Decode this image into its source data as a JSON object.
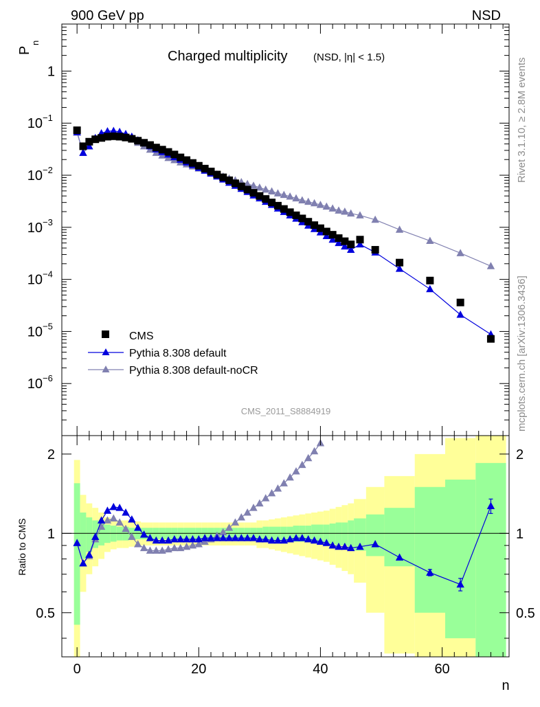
{
  "header": {
    "energy_label": "900 GeV pp",
    "process_label": "NSD"
  },
  "side_labels": {
    "rivet": "Rivet 3.1.10, ≥ 2.8M events",
    "mcplots": "mcplots.cern.ch [arXiv:1306.3436]"
  },
  "analysis_id": "CMS_2011_S8884919",
  "colors": {
    "data": "#000000",
    "default": "#0000dd",
    "nocr": "#8080b0",
    "band_inner": "#99ff99",
    "band_outer": "#ffff99"
  },
  "chart_data": [
    {
      "type": "scatter",
      "panel": "main",
      "title": "Charged multiplicity",
      "subtitle": "(NSD, |η| < 1.5)",
      "xlabel": "n",
      "ylabel": "P",
      "ylabel_sub": "n",
      "xlim": [
        -2.5,
        71
      ],
      "ylim": [
        1e-07,
        8
      ],
      "yscale": "log",
      "y_ticks": [
        {
          "value": 1,
          "label": "1"
        },
        {
          "value": 0.1,
          "base": "10",
          "exp": "−1"
        },
        {
          "value": 0.01,
          "base": "10",
          "exp": "−2"
        },
        {
          "value": 0.001,
          "base": "10",
          "exp": "−3"
        },
        {
          "value": 0.0001,
          "base": "10",
          "exp": "−4"
        },
        {
          "value": 1e-05,
          "base": "10",
          "exp": "−5"
        },
        {
          "value": 1e-06,
          "base": "10",
          "exp": "−6"
        }
      ],
      "legend": {
        "position": "bottom-left",
        "entries": [
          {
            "label": "CMS",
            "series": "cms"
          },
          {
            "label": "Pythia 8.308 default",
            "series": "default"
          },
          {
            "label": "Pythia 8.308 default-noCR",
            "series": "nocr"
          }
        ]
      },
      "series": [
        {
          "name": "CMS",
          "key": "cms",
          "marker": "square",
          "x": [
            0,
            1,
            2,
            3,
            4,
            5,
            6,
            7,
            8,
            9,
            10,
            11,
            12,
            13,
            14,
            15,
            16,
            17,
            18,
            19,
            20,
            21,
            22,
            23,
            24,
            25,
            26,
            27,
            28,
            29,
            30,
            31,
            32,
            33,
            34,
            35,
            36,
            37,
            38,
            39,
            40,
            41,
            42,
            43,
            44,
            45,
            46.5,
            49,
            53,
            58,
            63,
            68
          ],
          "y": [
            0.073,
            0.036,
            0.044,
            0.049,
            0.052,
            0.055,
            0.056,
            0.055,
            0.053,
            0.05,
            0.046,
            0.042,
            0.038,
            0.034,
            0.031,
            0.028,
            0.025,
            0.022,
            0.0195,
            0.0172,
            0.0152,
            0.0134,
            0.0118,
            0.0103,
            0.0091,
            0.008,
            0.007,
            0.0061,
            0.0053,
            0.0046,
            0.004,
            0.0035,
            0.003,
            0.0026,
            0.00225,
            0.00195,
            0.0017,
            0.00148,
            0.00128,
            0.0011,
            0.00096,
            0.00083,
            0.00072,
            0.00062,
            0.00054,
            0.00047,
            0.00058,
            0.00037,
            0.00021,
            9.5e-05,
            3.6e-05,
            7.2e-06
          ]
        },
        {
          "name": "Pythia 8.308 default",
          "key": "default",
          "marker": "triangle",
          "x": [
            0,
            1,
            2,
            3,
            4,
            5,
            6,
            7,
            8,
            9,
            10,
            11,
            12,
            13,
            14,
            15,
            16,
            17,
            18,
            19,
            20,
            21,
            22,
            23,
            24,
            25,
            26,
            27,
            28,
            29,
            30,
            31,
            32,
            33,
            34,
            35,
            36,
            37,
            38,
            39,
            40,
            41,
            42,
            43,
            44,
            45,
            46.5,
            49,
            53,
            58,
            63,
            68
          ],
          "y": [
            0.067,
            0.027,
            0.036,
            0.052,
            0.064,
            0.07,
            0.071,
            0.068,
            0.062,
            0.055,
            0.047,
            0.041,
            0.036,
            0.0315,
            0.028,
            0.025,
            0.0223,
            0.0199,
            0.0177,
            0.0157,
            0.0139,
            0.0123,
            0.0108,
            0.0095,
            0.0083,
            0.0072,
            0.0063,
            0.0055,
            0.0048,
            0.0041,
            0.0036,
            0.0031,
            0.0027,
            0.0023,
            0.00198,
            0.0017,
            0.00147,
            0.00126,
            0.00108,
            0.00093,
            0.0008,
            0.00068,
            0.00058,
            0.0005,
            0.00043,
            0.00037,
            0.00047,
            0.00033,
            0.00016,
            6.5e-05,
            2.1e-05,
            8.8e-06
          ]
        },
        {
          "name": "Pythia 8.308 default-noCR",
          "key": "nocr",
          "marker": "triangle",
          "x": [
            0,
            1,
            2,
            3,
            4,
            5,
            6,
            7,
            8,
            9,
            10,
            11,
            12,
            13,
            14,
            15,
            16,
            17,
            18,
            19,
            20,
            21,
            22,
            23,
            24,
            25,
            26,
            27,
            28,
            29,
            30,
            31,
            32,
            33,
            34,
            35,
            36,
            37,
            38,
            39,
            40,
            41,
            42,
            43,
            44,
            45,
            46.5,
            49,
            53,
            58,
            63,
            68
          ],
          "y": [
            0.066,
            0.027,
            0.036,
            0.048,
            0.056,
            0.061,
            0.062,
            0.06,
            0.055,
            0.049,
            0.042,
            0.036,
            0.031,
            0.027,
            0.024,
            0.0215,
            0.0195,
            0.0177,
            0.0162,
            0.0148,
            0.0135,
            0.0123,
            0.0113,
            0.0104,
            0.0095,
            0.0087,
            0.008,
            0.0074,
            0.0068,
            0.0063,
            0.0058,
            0.0053,
            0.0049,
            0.0045,
            0.0042,
            0.0039,
            0.0036,
            0.0033,
            0.0031,
            0.0029,
            0.0027,
            0.0025,
            0.0023,
            0.0021,
            0.002,
            0.00185,
            0.0017,
            0.0014,
            0.0009,
            0.00055,
            0.00032,
            0.00018
          ]
        }
      ]
    },
    {
      "type": "line",
      "panel": "ratio",
      "ylabel": "Ratio to CMS",
      "xlabel": "n",
      "xlim": [
        -2.5,
        71
      ],
      "ylim": [
        0.34,
        2.35
      ],
      "yscale": "log",
      "x_ticks": [
        0,
        20,
        40,
        60
      ],
      "y_ticks": [
        0.5,
        1,
        2
      ],
      "reference_line": 1,
      "bands": {
        "bin_edges": [
          -0.5,
          0.5,
          1.5,
          2.5,
          3.5,
          4.5,
          5.5,
          6.5,
          7.5,
          8.5,
          9.5,
          10.5,
          11.5,
          12.5,
          13.5,
          14.5,
          15.5,
          16.5,
          17.5,
          18.5,
          19.5,
          20.5,
          21.5,
          22.5,
          23.5,
          24.5,
          25.5,
          26.5,
          27.5,
          28.5,
          29.5,
          30.5,
          31.5,
          32.5,
          33.5,
          34.5,
          35.5,
          36.5,
          37.5,
          38.5,
          39.5,
          40.5,
          41.5,
          42.5,
          43.5,
          44.5,
          45.5,
          47.5,
          50.5,
          55.5,
          60.5,
          65.5,
          70.5
        ],
        "inner_half_width": [
          0.55,
          0.2,
          0.15,
          0.12,
          0.1,
          0.08,
          0.07,
          0.06,
          0.06,
          0.05,
          0.05,
          0.05,
          0.05,
          0.05,
          0.05,
          0.05,
          0.05,
          0.05,
          0.05,
          0.05,
          0.05,
          0.05,
          0.05,
          0.05,
          0.05,
          0.05,
          0.05,
          0.05,
          0.05,
          0.05,
          0.05,
          0.06,
          0.06,
          0.06,
          0.06,
          0.06,
          0.07,
          0.07,
          0.07,
          0.08,
          0.08,
          0.08,
          0.09,
          0.1,
          0.1,
          0.12,
          0.14,
          0.18,
          0.25,
          0.5,
          0.6,
          0.85
        ],
        "outer_half_width": [
          0.9,
          0.4,
          0.3,
          0.25,
          0.2,
          0.15,
          0.13,
          0.12,
          0.12,
          0.11,
          0.11,
          0.1,
          0.1,
          0.1,
          0.1,
          0.1,
          0.1,
          0.1,
          0.1,
          0.1,
          0.1,
          0.1,
          0.1,
          0.1,
          0.1,
          0.1,
          0.1,
          0.1,
          0.1,
          0.1,
          0.12,
          0.12,
          0.13,
          0.14,
          0.15,
          0.16,
          0.17,
          0.18,
          0.19,
          0.2,
          0.21,
          0.22,
          0.24,
          0.26,
          0.28,
          0.3,
          0.35,
          0.5,
          0.65,
          1.0,
          1.3,
          1.5
        ]
      },
      "series": [
        {
          "name": "Pythia 8.308 default",
          "key": "default",
          "x": [
            0,
            1,
            2,
            3,
            4,
            5,
            6,
            7,
            8,
            9,
            10,
            11,
            12,
            13,
            14,
            15,
            16,
            17,
            18,
            19,
            20,
            21,
            22,
            23,
            24,
            25,
            26,
            27,
            28,
            29,
            30,
            31,
            32,
            33,
            34,
            35,
            36,
            37,
            38,
            39,
            40,
            41,
            42,
            43,
            44,
            45,
            46.5,
            49,
            53,
            58,
            63,
            68
          ],
          "y": [
            0.92,
            0.77,
            0.83,
            0.97,
            1.12,
            1.22,
            1.26,
            1.25,
            1.2,
            1.13,
            1.05,
            0.99,
            0.96,
            0.94,
            0.94,
            0.94,
            0.95,
            0.95,
            0.95,
            0.95,
            0.95,
            0.96,
            0.96,
            0.96,
            0.96,
            0.96,
            0.96,
            0.96,
            0.96,
            0.96,
            0.95,
            0.95,
            0.94,
            0.94,
            0.94,
            0.95,
            0.96,
            0.96,
            0.95,
            0.94,
            0.93,
            0.92,
            0.9,
            0.89,
            0.89,
            0.88,
            0.89,
            0.91,
            0.81,
            0.71,
            0.64,
            1.27
          ],
          "err": [
            0,
            0,
            0,
            0,
            0,
            0,
            0,
            0,
            0,
            0,
            0,
            0,
            0,
            0,
            0,
            0,
            0,
            0,
            0,
            0,
            0,
            0,
            0,
            0,
            0,
            0,
            0,
            0,
            0,
            0,
            0,
            0,
            0,
            0,
            0,
            0,
            0,
            0,
            0,
            0,
            0,
            0,
            0,
            0,
            0,
            0,
            0,
            0,
            0,
            0.02,
            0.035,
            0.08
          ]
        },
        {
          "name": "Pythia 8.308 default-noCR",
          "key": "nocr",
          "x": [
            0,
            1,
            2,
            3,
            4,
            5,
            6,
            7,
            8,
            9,
            10,
            11,
            12,
            13,
            14,
            15,
            16,
            17,
            18,
            19,
            20,
            21,
            22,
            23,
            24,
            25,
            26,
            27,
            28,
            29,
            30,
            31,
            32,
            33,
            34,
            35,
            36,
            37,
            38,
            39,
            40
          ],
          "y": [
            0.92,
            0.77,
            0.82,
            0.95,
            1.06,
            1.12,
            1.14,
            1.1,
            1.04,
            0.97,
            0.91,
            0.88,
            0.86,
            0.86,
            0.86,
            0.87,
            0.88,
            0.88,
            0.89,
            0.9,
            0.91,
            0.93,
            0.95,
            0.98,
            1.01,
            1.05,
            1.1,
            1.15,
            1.2,
            1.25,
            1.3,
            1.36,
            1.42,
            1.48,
            1.55,
            1.63,
            1.72,
            1.82,
            1.93,
            2.05,
            2.2
          ]
        }
      ]
    }
  ]
}
